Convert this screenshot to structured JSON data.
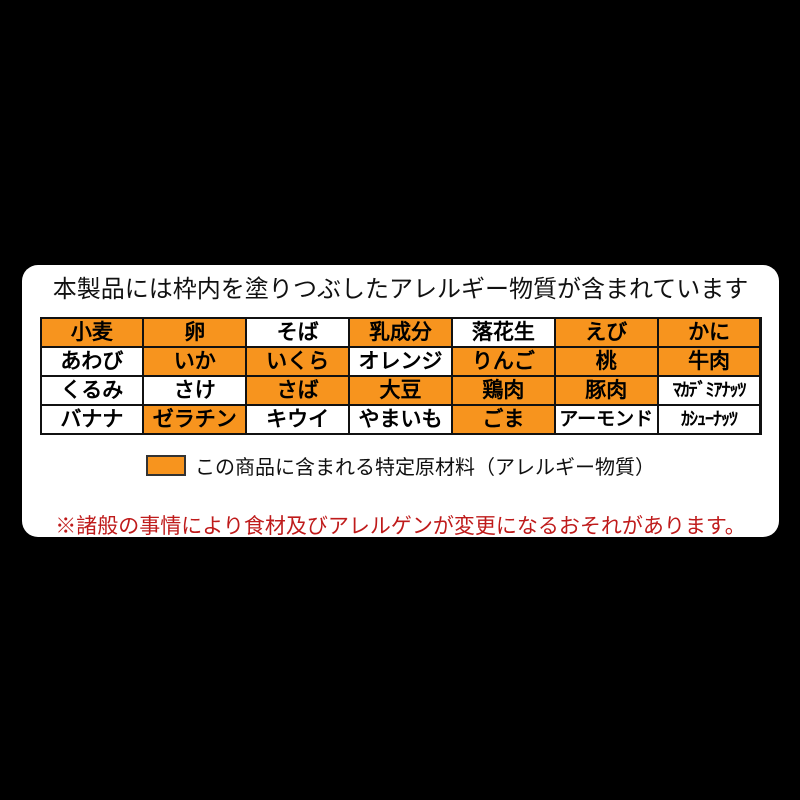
{
  "card": {
    "title": "本製品には枠内を塗りつぶしたアレルギー物質が含まれています",
    "legend_label": "この商品に含まれる特定原材料（アレルギー物質）",
    "note": "※諸般の事情により食材及びアレルゲンが変更になるおそれがあります。"
  },
  "colors": {
    "highlight_orange": "#f7941e",
    "note_red": "#bf1b1b",
    "card_bg": "#ffffff",
    "page_bg": "#000000",
    "cell_border": "#111111"
  },
  "allergen_table": {
    "rows": [
      [
        {
          "label": "小麦",
          "included": true
        },
        {
          "label": "卵",
          "included": true
        },
        {
          "label": "そば",
          "included": false
        },
        {
          "label": "乳成分",
          "included": true
        },
        {
          "label": "落花生",
          "included": false
        },
        {
          "label": "えび",
          "included": true
        },
        {
          "label": "かに",
          "included": true
        }
      ],
      [
        {
          "label": "あわび",
          "included": false
        },
        {
          "label": "いか",
          "included": true
        },
        {
          "label": "いくら",
          "included": true
        },
        {
          "label": "オレンジ",
          "included": false
        },
        {
          "label": "りんご",
          "included": true
        },
        {
          "label": "桃",
          "included": true
        },
        {
          "label": "牛肉",
          "included": true
        }
      ],
      [
        {
          "label": "くるみ",
          "included": false
        },
        {
          "label": "さけ",
          "included": false
        },
        {
          "label": "さば",
          "included": true
        },
        {
          "label": "大豆",
          "included": true
        },
        {
          "label": "鶏肉",
          "included": true
        },
        {
          "label": "豚肉",
          "included": true
        },
        {
          "label": "ﾏｶﾃﾞﾐｱﾅｯﾂ",
          "included": false
        }
      ],
      [
        {
          "label": "バナナ",
          "included": false
        },
        {
          "label": "ゼラチン",
          "included": true
        },
        {
          "label": "キウイ",
          "included": false
        },
        {
          "label": "やまいも",
          "included": false
        },
        {
          "label": "ごま",
          "included": true
        },
        {
          "label": "アーモンド",
          "included": false
        },
        {
          "label": "ｶｼｭｰﾅｯﾂ",
          "included": false
        }
      ]
    ]
  }
}
